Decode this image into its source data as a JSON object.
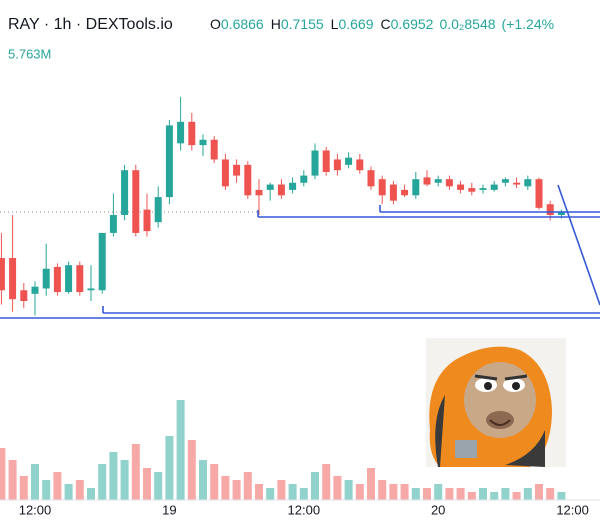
{
  "chart_data": {
    "type": "candlestick",
    "title": "RAY · 1h · DEXTools.io",
    "ohlc": [
      {
        "label": "O",
        "value": 0.6866
      },
      {
        "label": "H",
        "value": 0.7155
      },
      {
        "label": "L",
        "value": 0.669
      },
      {
        "label": "C",
        "value": 0.6952
      }
    ],
    "change": "0.0₂8548",
    "change_pct": "(+1.24%",
    "volume_label": "5.763M",
    "up_color": "#26a69a",
    "down_color": "#ef5350",
    "open": [
      0.676,
      0.676,
      0.658,
      0.656,
      0.659,
      0.671,
      0.657,
      0.672,
      0.658,
      0.658,
      0.69,
      0.7,
      0.725,
      0.703,
      0.696,
      0.71,
      0.74,
      0.752,
      0.739,
      0.742,
      0.731,
      0.728,
      0.728,
      0.714,
      0.714,
      0.717,
      0.714,
      0.718,
      0.722,
      0.736,
      0.731,
      0.728,
      0.731,
      0.725,
      0.72,
      0.717,
      0.714,
      0.711,
      0.721,
      0.718,
      0.72,
      0.717,
      0.715,
      0.714,
      0.714,
      0.718,
      0.718,
      0.716,
      0.72,
      0.706,
      0.7
    ],
    "high": [
      0.69,
      0.7,
      0.662,
      0.663,
      0.684,
      0.673,
      0.674,
      0.674,
      0.672,
      0.69,
      0.712,
      0.728,
      0.728,
      0.712,
      0.716,
      0.753,
      0.766,
      0.757,
      0.745,
      0.744,
      0.734,
      0.731,
      0.73,
      0.72,
      0.718,
      0.72,
      0.721,
      0.725,
      0.74,
      0.738,
      0.734,
      0.735,
      0.734,
      0.727,
      0.722,
      0.719,
      0.717,
      0.724,
      0.725,
      0.722,
      0.722,
      0.719,
      0.718,
      0.717,
      0.719,
      0.721,
      0.721,
      0.722,
      0.721,
      0.708,
      0.703
    ],
    "low": [
      0.65,
      0.646,
      0.648,
      0.644,
      0.655,
      0.655,
      0.656,
      0.655,
      0.652,
      0.656,
      0.688,
      0.697,
      0.688,
      0.688,
      0.693,
      0.706,
      0.736,
      0.736,
      0.733,
      0.729,
      0.714,
      0.718,
      0.709,
      0.7,
      0.708,
      0.709,
      0.712,
      0.716,
      0.72,
      0.722,
      0.722,
      0.726,
      0.723,
      0.714,
      0.706,
      0.706,
      0.71,
      0.709,
      0.716,
      0.716,
      0.714,
      0.712,
      0.711,
      0.712,
      0.713,
      0.716,
      0.715,
      0.714,
      0.703,
      0.697,
      0.698
    ],
    "close": [
      0.658,
      0.653,
      0.652,
      0.66,
      0.67,
      0.657,
      0.672,
      0.657,
      0.659,
      0.69,
      0.7,
      0.725,
      0.69,
      0.691,
      0.71,
      0.75,
      0.752,
      0.739,
      0.742,
      0.731,
      0.716,
      0.722,
      0.711,
      0.711,
      0.717,
      0.711,
      0.718,
      0.722,
      0.736,
      0.724,
      0.725,
      0.732,
      0.725,
      0.716,
      0.711,
      0.708,
      0.711,
      0.72,
      0.717,
      0.72,
      0.716,
      0.714,
      0.713,
      0.715,
      0.717,
      0.72,
      0.717,
      0.72,
      0.704,
      0.7,
      0.702
    ],
    "volume": [
      1.3,
      1.0,
      0.6,
      0.9,
      0.5,
      0.7,
      0.4,
      0.5,
      0.3,
      0.9,
      1.2,
      1.0,
      1.4,
      0.8,
      0.7,
      1.6,
      2.5,
      1.5,
      1.0,
      0.9,
      0.6,
      0.5,
      0.7,
      0.4,
      0.3,
      0.5,
      0.4,
      0.3,
      0.7,
      0.9,
      0.6,
      0.5,
      0.4,
      0.8,
      0.5,
      0.4,
      0.4,
      0.3,
      0.3,
      0.4,
      0.3,
      0.3,
      0.2,
      0.3,
      0.2,
      0.3,
      0.2,
      0.3,
      0.4,
      0.3,
      0.2
    ],
    "ylim": [
      0.58,
      0.82
    ],
    "vlim": [
      0,
      4
    ],
    "xticks": [
      {
        "value": 3,
        "label": "12:00"
      },
      {
        "value": 15,
        "label": "19"
      },
      {
        "value": 27,
        "label": "12:00"
      },
      {
        "value": 39,
        "label": "20"
      },
      {
        "value": 51,
        "label": "12:00"
      }
    ]
  }
}
